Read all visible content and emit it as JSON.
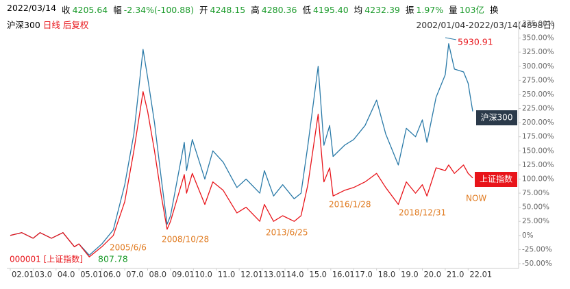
{
  "header": {
    "date": "2022/03/14",
    "items": [
      {
        "label": "收",
        "value": "4205.64"
      },
      {
        "label": "幅",
        "value": "-2.34%(-100.88)"
      },
      {
        "label": "开",
        "value": "4248.15"
      },
      {
        "label": "高",
        "value": "4280.36"
      },
      {
        "label": "低",
        "value": "4195.40"
      },
      {
        "label": "均",
        "value": "4232.39"
      },
      {
        "label": "振",
        "value": "1.97%"
      },
      {
        "label": "量",
        "value": "103亿"
      },
      {
        "label": "换",
        "value": ""
      }
    ]
  },
  "subheader": {
    "index": "沪深300",
    "period": "日线",
    "adjust": "后复权",
    "range": "2002/01/04-2022/03/14(4898日)"
  },
  "chart_data": {
    "type": "line",
    "x": [
      2002.0,
      2002.5,
      2003.0,
      2003.3,
      2003.8,
      2004.3,
      2004.8,
      2005.0,
      2005.45,
      2006.0,
      2006.5,
      2007.0,
      2007.4,
      2007.8,
      2008.0,
      2008.3,
      2008.6,
      2008.85,
      2009.0,
      2009.6,
      2009.7,
      2009.95,
      2010.5,
      2010.85,
      2011.3,
      2011.9,
      2012.3,
      2012.9,
      2013.1,
      2013.5,
      2013.9,
      2014.4,
      2014.7,
      2015.0,
      2015.45,
      2015.7,
      2015.95,
      2016.1,
      2016.6,
      2017.0,
      2017.5,
      2018.0,
      2018.4,
      2018.95,
      2019.3,
      2019.7,
      2020.0,
      2020.2,
      2020.6,
      2021.0,
      2021.15,
      2021.4,
      2021.8,
      2022.0,
      2022.2
    ],
    "series": [
      {
        "name": "沪深300",
        "color": "#2a7aa8",
        "values": [
          0,
          5,
          -5,
          5,
          -5,
          5,
          -20,
          -15,
          -35,
          -15,
          10,
          90,
          180,
          330,
          280,
          200,
          100,
          20,
          35,
          165,
          115,
          170,
          100,
          150,
          130,
          85,
          100,
          75,
          115,
          70,
          90,
          65,
          75,
          160,
          300,
          160,
          195,
          140,
          160,
          170,
          195,
          240,
          180,
          125,
          190,
          175,
          205,
          165,
          245,
          285,
          340,
          295,
          290,
          270,
          220
        ]
      },
      {
        "name": "上证指数",
        "color": "#e8141a",
        "values": [
          0,
          5,
          -5,
          5,
          -5,
          5,
          -20,
          -15,
          -38,
          -20,
          0,
          60,
          150,
          255,
          220,
          150,
          70,
          11,
          25,
          108,
          75,
          110,
          55,
          95,
          80,
          40,
          50,
          25,
          55,
          25,
          35,
          25,
          35,
          90,
          215,
          95,
          120,
          70,
          80,
          85,
          95,
          110,
          85,
          55,
          95,
          75,
          90,
          70,
          120,
          115,
          125,
          110,
          125,
          110,
          102
        ]
      }
    ],
    "xlim": [
      2002.0,
      2022.2
    ],
    "xticks": [
      {
        "value": 2002,
        "label": "02.01"
      },
      {
        "value": 2003,
        "label": "03.0"
      },
      {
        "value": 2004,
        "label": "04.0"
      },
      {
        "value": 2005,
        "label": "05.01"
      },
      {
        "value": 2006,
        "label": "06.0"
      },
      {
        "value": 2007,
        "label": "07.0"
      },
      {
        "value": 2008,
        "label": "08.0"
      },
      {
        "value": 2009,
        "label": "09.01"
      },
      {
        "value": 2010,
        "label": "10.0"
      },
      {
        "value": 2011,
        "label": "11.0"
      },
      {
        "value": 2012,
        "label": "12.01"
      },
      {
        "value": 2013,
        "label": "13.01"
      },
      {
        "value": 2014,
        "label": "14.0"
      },
      {
        "value": 2015,
        "label": "15.0"
      },
      {
        "value": 2016,
        "label": "16.01"
      },
      {
        "value": 2017,
        "label": "17.0"
      },
      {
        "value": 2018,
        "label": "18.0"
      },
      {
        "value": 2019,
        "label": "19.0"
      },
      {
        "value": 2020,
        "label": "20.0"
      },
      {
        "value": 2021,
        "label": "21.0"
      },
      {
        "value": 2022,
        "label": "22.01"
      }
    ],
    "ylim": [
      -50,
      375
    ],
    "yticks": [
      {
        "value": -50,
        "label": "-50.00%"
      },
      {
        "value": -25,
        "label": "-25.00%"
      },
      {
        "value": 0,
        "label": "0%"
      },
      {
        "value": 25,
        "label": "25.00%"
      },
      {
        "value": 50,
        "label": "50.00%"
      },
      {
        "value": 75,
        "label": "75.00%"
      },
      {
        "value": 100,
        "label": "100.00%"
      },
      {
        "value": 125,
        "label": "125.00%"
      },
      {
        "value": 150,
        "label": "150.00%"
      },
      {
        "value": 175,
        "label": "175.00%"
      },
      {
        "value": 200,
        "label": "200.00%"
      },
      {
        "value": 225,
        "label": "225.00%"
      },
      {
        "value": 250,
        "label": "250.00%"
      },
      {
        "value": 275,
        "label": "275.00%"
      },
      {
        "value": 300,
        "label": "300.00%"
      },
      {
        "value": 325,
        "label": "325.00%"
      },
      {
        "value": 350,
        "label": "350.00%"
      },
      {
        "value": 375,
        "label": "375.00%"
      }
    ],
    "grid": false,
    "annotations": {
      "peak": "5930.91",
      "trough": "807.78",
      "base": "000001 [上证指数]",
      "dates": [
        "2005/6/6",
        "2008/10/28",
        "2013/6/25",
        "2016/1/28",
        "2018/12/31",
        "NOW"
      ]
    }
  }
}
